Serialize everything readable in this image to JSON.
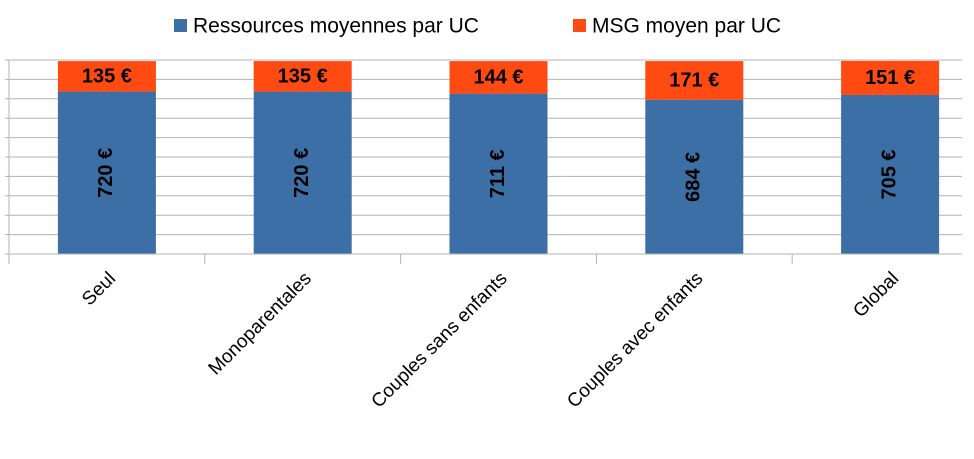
{
  "chart_data": {
    "type": "stacked_bar",
    "categories": [
      "Seul",
      "Monoparentales",
      "Couples sans enfants",
      "Couples avec enfants",
      "Global"
    ],
    "series": [
      {
        "name": "Ressources moyennes par UC",
        "color": "#3b6fa5",
        "values": [
          720,
          720,
          711,
          684,
          705
        ],
        "value_labels": [
          "720 €",
          "720 €",
          "711 €",
          "684 €",
          "705 €"
        ]
      },
      {
        "name": "MSG moyen par UC",
        "color": "#ff4a12",
        "values": [
          135,
          135,
          144,
          171,
          151
        ],
        "value_labels": [
          "135 €",
          "135 €",
          "144 €",
          "171 €",
          "151 €"
        ]
      }
    ],
    "ylim": [
      0,
      860
    ],
    "yticks": [
      0,
      86,
      172,
      258,
      344,
      430,
      516,
      602,
      688,
      774,
      860
    ],
    "grid": true,
    "legend": "top"
  }
}
